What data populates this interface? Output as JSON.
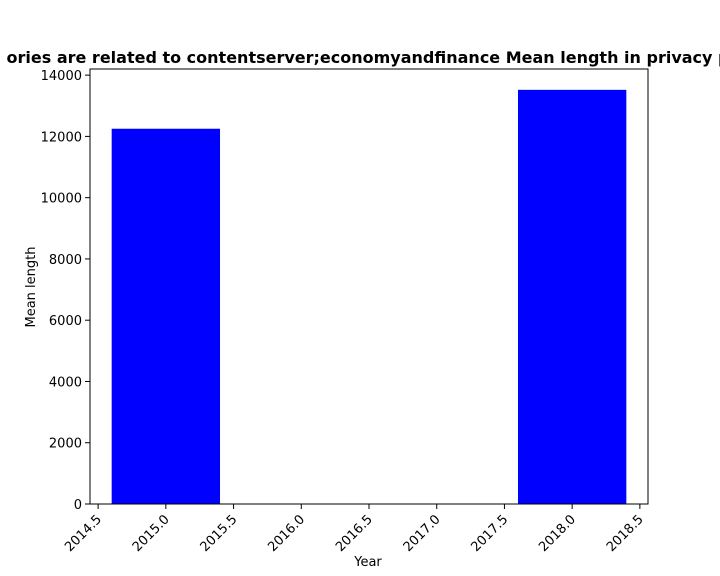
{
  "chart_data": {
    "type": "bar",
    "title": "ories are related to contentserver;economyandfinance Mean length in privacy p",
    "xlabel": "Year",
    "ylabel": "Mean length",
    "x": [
      2015,
      2018
    ],
    "values": [
      12250,
      13520
    ],
    "bar_width": 0.8,
    "xlim": [
      2014.44,
      2018.56
    ],
    "ylim": [
      0,
      14200
    ],
    "xticks": [
      2014.5,
      2015.0,
      2015.5,
      2016.0,
      2016.5,
      2017.0,
      2017.5,
      2018.0,
      2018.5
    ],
    "xtick_labels": [
      "2014.5",
      "2015.0",
      "2015.5",
      "2016.0",
      "2016.5",
      "2017.0",
      "2017.5",
      "2018.0",
      "2018.5"
    ],
    "yticks": [
      0,
      2000,
      4000,
      6000,
      8000,
      10000,
      12000,
      14000
    ],
    "ytick_labels": [
      "0",
      "2000",
      "4000",
      "6000",
      "8000",
      "10000",
      "12000",
      "14000"
    ],
    "bar_color": "#0000ff",
    "grid": false,
    "legend": "none"
  }
}
